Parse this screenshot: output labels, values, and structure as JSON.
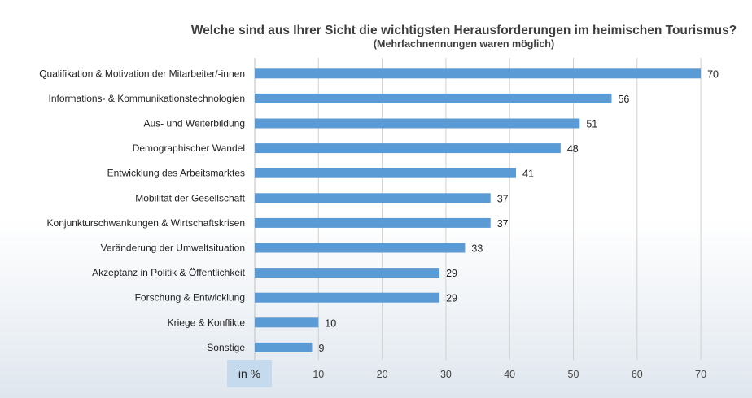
{
  "chart_data": {
    "type": "bar",
    "orientation": "horizontal",
    "title": "Welche sind aus Ihrer Sicht die wichtigsten Herausforderungen im heimischen Tourismus?",
    "subtitle": "(Mehrfachnennungen waren möglich)",
    "xlabel": "in %",
    "categories": [
      "Qualifikation & Motivation der Mitarbeiter/-innen",
      "Informations- & Kommunikationstechnologien",
      "Aus- und Weiterbildung",
      "Demographischer Wandel",
      "Entwicklung des Arbeitsmarktes",
      "Mobilität der Gesellschaft",
      "Konjunkturschwankungen & Wirtschaftskrisen",
      "Veränderung der Umweltsituation",
      "Akzeptanz in Politik & Öffentlichkeit",
      "Forschung & Entwicklung",
      "Kriege & Konflikte",
      "Sonstige"
    ],
    "values": [
      70,
      56,
      51,
      48,
      41,
      37,
      37,
      33,
      29,
      29,
      10,
      9
    ],
    "xlim": [
      0,
      70
    ],
    "xticks": [
      10,
      20,
      30,
      40,
      50,
      60,
      70
    ],
    "grid": true,
    "bar_color": "#5b9bd5"
  }
}
